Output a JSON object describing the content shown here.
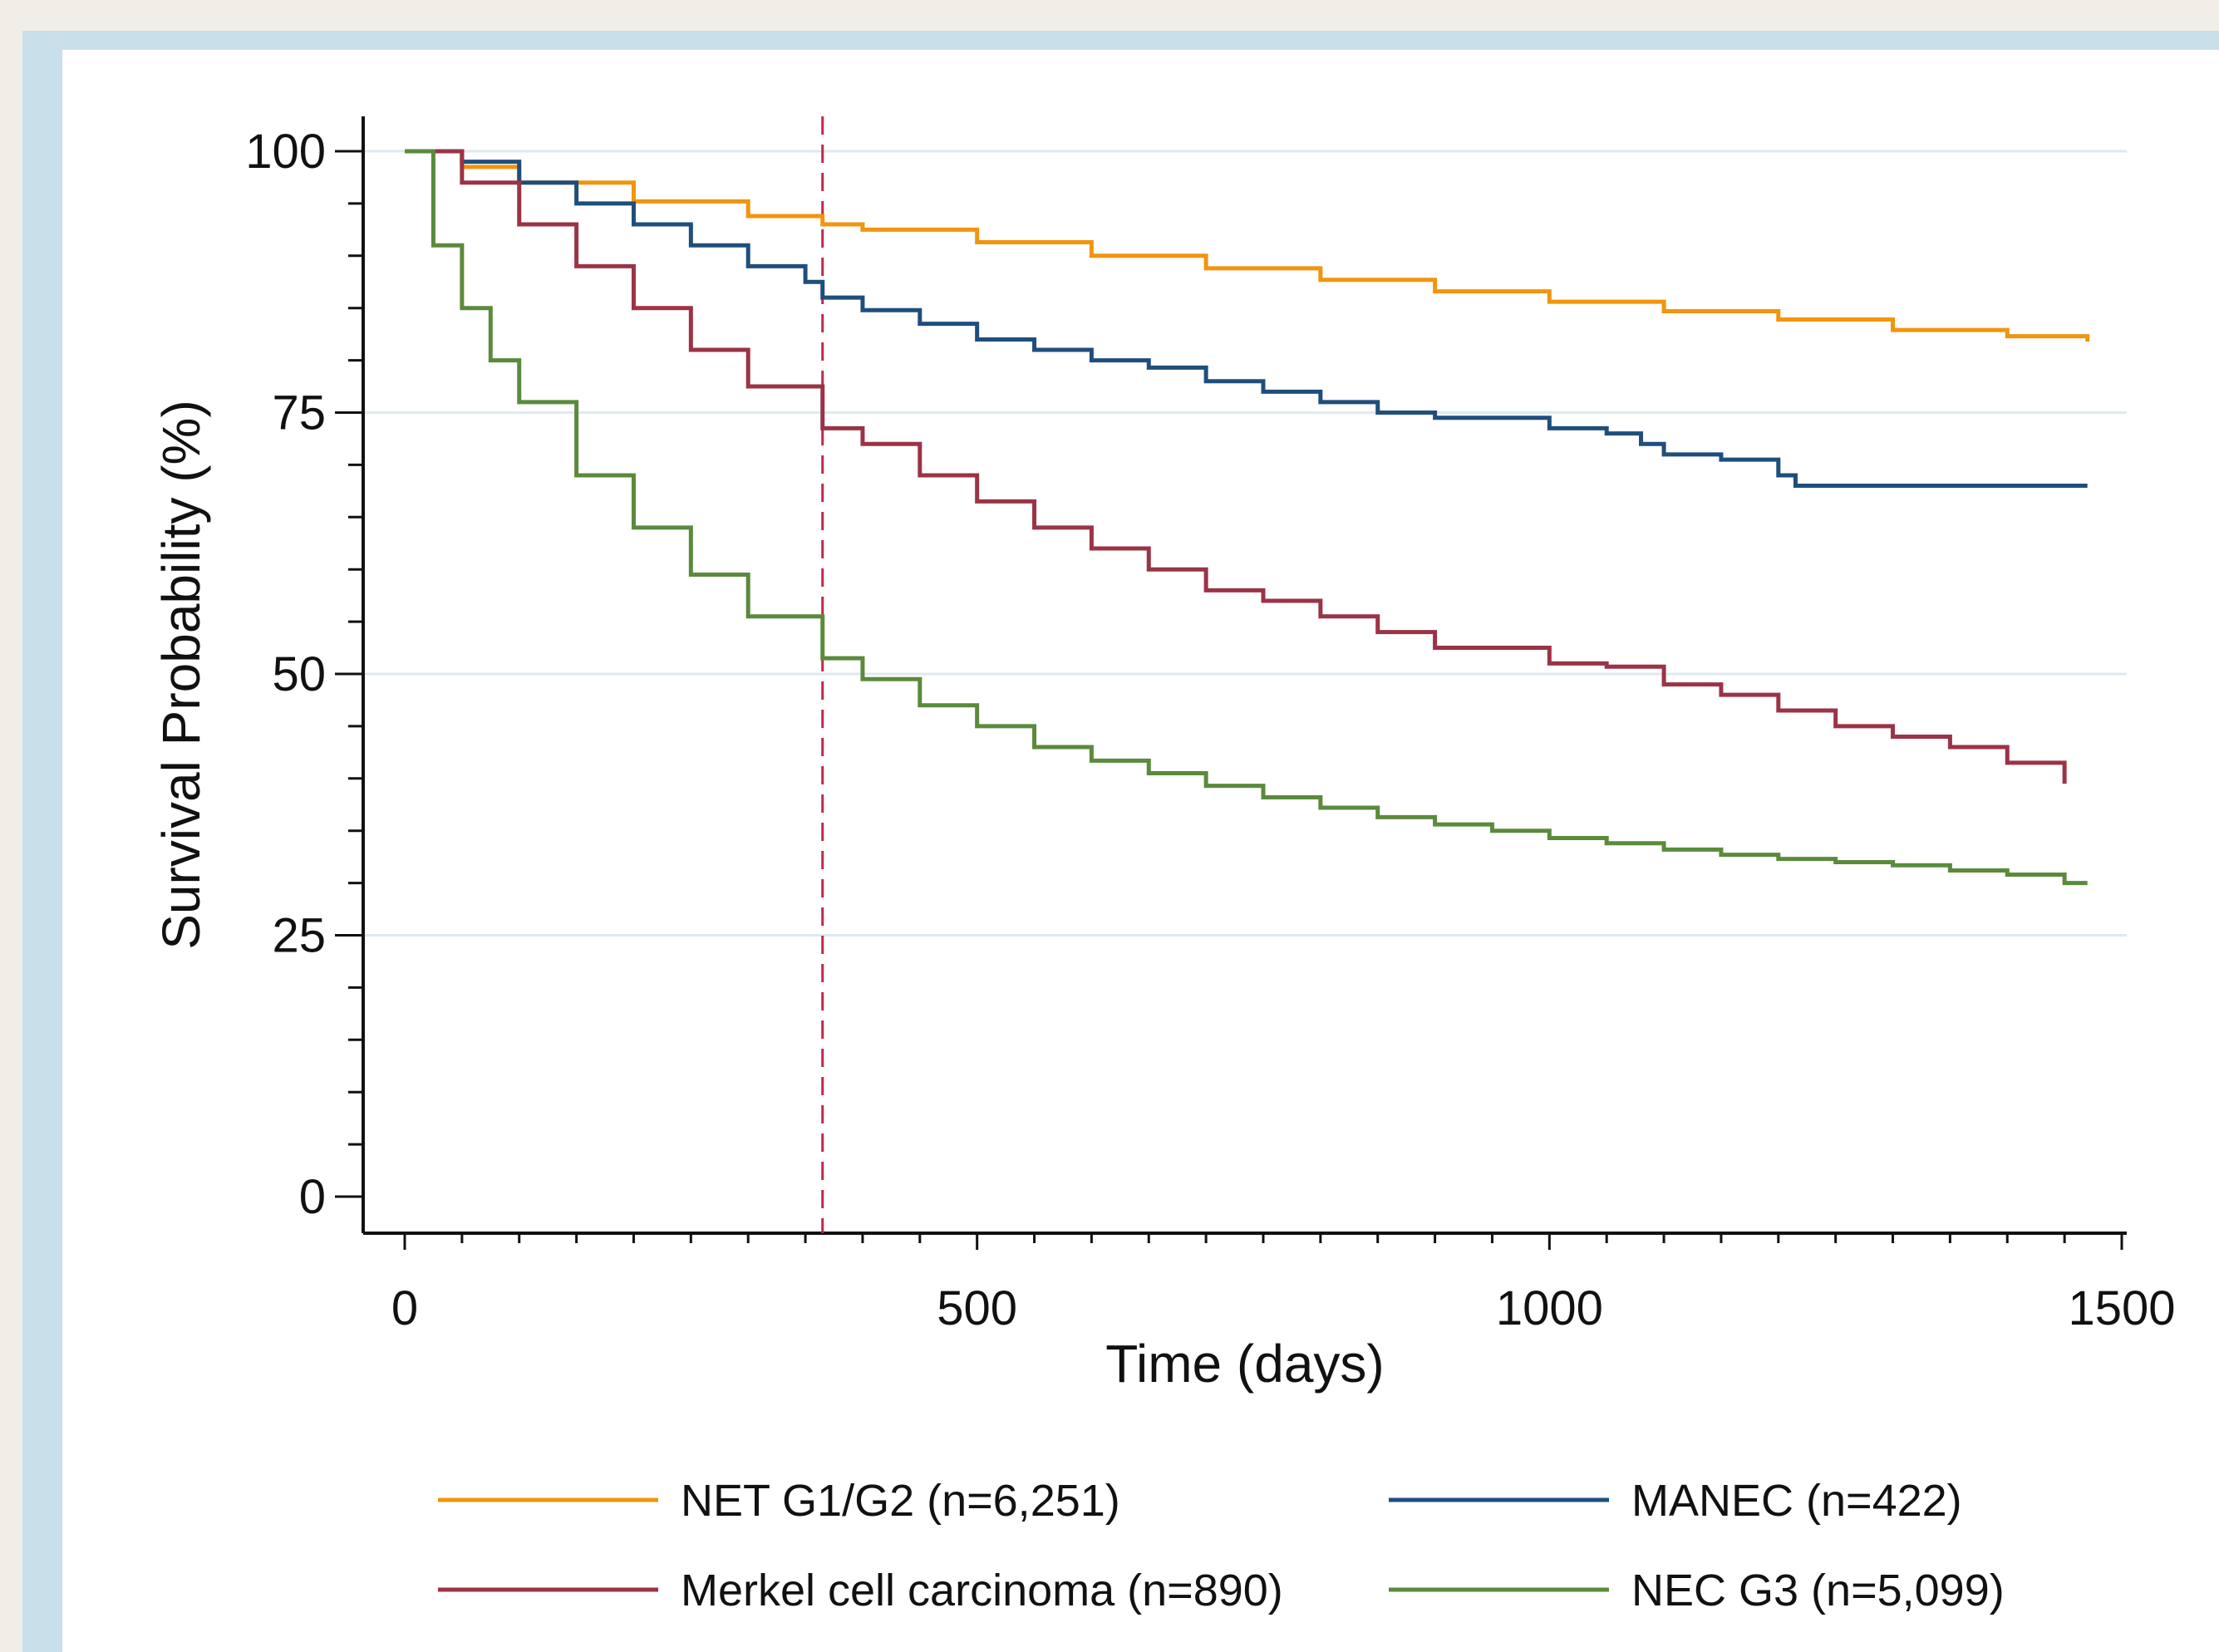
{
  "chart_data": {
    "type": "line",
    "title": "",
    "xlabel": "Time (days)",
    "ylabel": "Survival Probability (%)",
    "xlim": [
      0,
      1500
    ],
    "ylim": [
      0,
      100
    ],
    "x_ticks": [
      "0",
      "500",
      "1000",
      "1500"
    ],
    "y_ticks": [
      "0",
      "25",
      "50",
      "75",
      "100"
    ],
    "grid": "horizontal",
    "legend_position": "bottom",
    "reference_line": {
      "x": 365,
      "color": "#c0284a",
      "style": "dashed"
    },
    "series": [
      {
        "name": "NET G1/G2 (n=6,251)",
        "color": "#f0950e",
        "x": [
          0,
          50,
          100,
          200,
          300,
          365,
          400,
          500,
          600,
          700,
          800,
          900,
          1000,
          1100,
          1200,
          1300,
          1400,
          1470
        ],
        "y": [
          100,
          98.5,
          97,
          95.2,
          93.8,
          93,
          92.5,
          91.3,
          90,
          88.8,
          87.7,
          86.6,
          85.6,
          84.7,
          83.9,
          82.9,
          82.3,
          81.8
        ]
      },
      {
        "name": "MANEC (n=422)",
        "color": "#1f4e7c",
        "x": [
          0,
          50,
          100,
          150,
          200,
          250,
          300,
          350,
          365,
          400,
          450,
          500,
          550,
          600,
          650,
          700,
          750,
          800,
          850,
          900,
          950,
          1000,
          1050,
          1080,
          1100,
          1150,
          1200,
          1215,
          1300,
          1400,
          1470
        ],
        "y": [
          100,
          99,
          97,
          95,
          93,
          91,
          89,
          87.5,
          86,
          84.8,
          83.5,
          82,
          81,
          80,
          79.3,
          78,
          77,
          76,
          75,
          74.5,
          74.5,
          73.5,
          73,
          72,
          71,
          70.5,
          69,
          68,
          68,
          68,
          68
        ]
      },
      {
        "name": "Merkel cell carcinoma (n=890)",
        "color": "#9b3347",
        "x": [
          0,
          50,
          100,
          150,
          200,
          250,
          300,
          365,
          400,
          450,
          500,
          550,
          600,
          650,
          700,
          750,
          800,
          850,
          900,
          950,
          1000,
          1050,
          1100,
          1150,
          1200,
          1250,
          1300,
          1350,
          1380,
          1400,
          1450
        ],
        "y": [
          100,
          97,
          93,
          89,
          85,
          81,
          77.5,
          73.5,
          72,
          69,
          66.5,
          64,
          62,
          60,
          58,
          57,
          55.5,
          54,
          52.5,
          52.5,
          51,
          50.7,
          49,
          48,
          46.5,
          45,
          44,
          43,
          43,
          41.5,
          39.5
        ]
      },
      {
        "name": "NEC G3 (n=5,099)",
        "color": "#5b8a3c",
        "x": [
          0,
          25,
          50,
          75,
          100,
          150,
          200,
          250,
          300,
          365,
          400,
          450,
          500,
          550,
          600,
          650,
          700,
          750,
          800,
          850,
          900,
          950,
          1000,
          1050,
          1100,
          1150,
          1200,
          1250,
          1300,
          1350,
          1400,
          1450,
          1470
        ],
        "y": [
          100,
          91,
          85,
          80,
          76,
          69,
          64,
          59.5,
          55.5,
          51.5,
          49.5,
          47,
          45,
          43,
          41.7,
          40.5,
          39.3,
          38.2,
          37.2,
          36.3,
          35.6,
          35,
          34.3,
          33.8,
          33.2,
          32.7,
          32.3,
          32,
          31.7,
          31.2,
          30.8,
          30,
          30
        ]
      }
    ]
  }
}
